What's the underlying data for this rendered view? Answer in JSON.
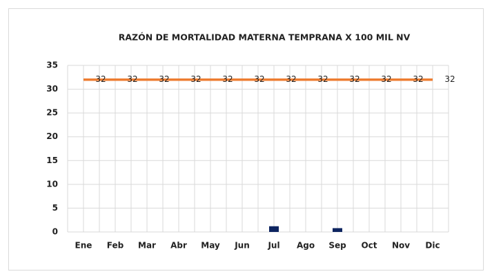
{
  "chart_data": {
    "type": "combo",
    "title": "RAZÓN DE MORTALIDAD  MATERNA TEMPRANA  X 100 MIL NV",
    "categories": [
      "Ene",
      "Feb",
      "Mar",
      "Abr",
      "May",
      "Jun",
      "Jul",
      "Ago",
      "Sep",
      "Oct",
      "Nov",
      "Dic"
    ],
    "series": [
      {
        "type": "bar",
        "color": "#0d2460",
        "values": [
          0,
          0,
          0,
          0,
          0,
          0,
          1.2,
          0,
          0.8,
          0,
          0,
          0
        ]
      },
      {
        "type": "line",
        "color": "#ed7d31",
        "data_labels": true,
        "values": [
          32,
          32,
          32,
          32,
          32,
          32,
          32,
          32,
          32,
          32,
          32,
          32
        ]
      }
    ],
    "ylim": [
      0,
      35
    ],
    "yticks": [
      0,
      5,
      10,
      15,
      20,
      25,
      30,
      35
    ],
    "grid": true
  }
}
